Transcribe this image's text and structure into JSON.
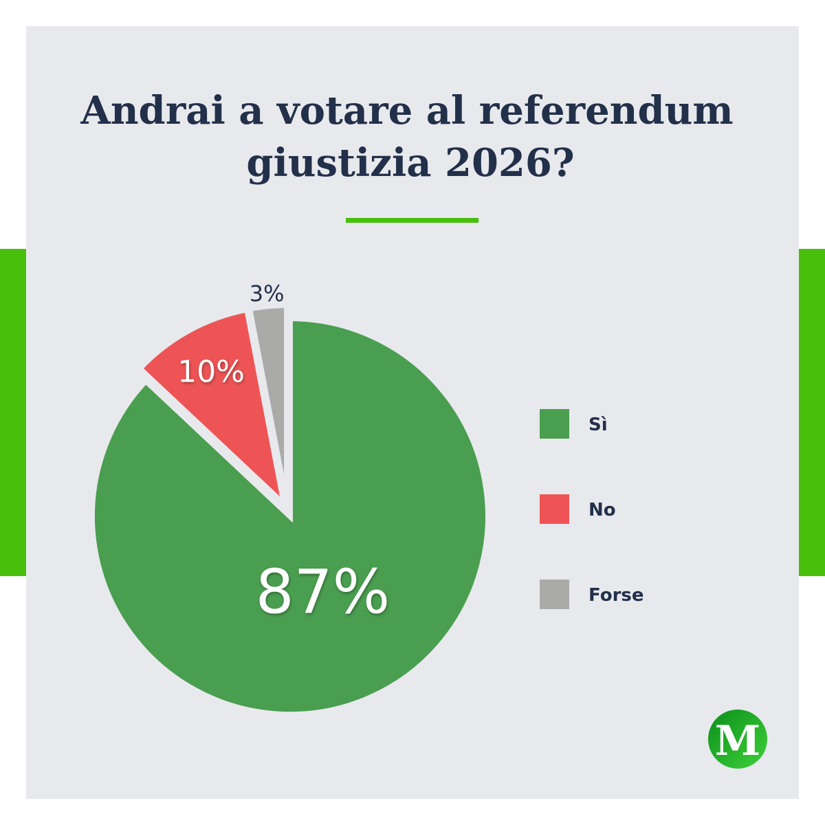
{
  "chart_data": {
    "type": "pie",
    "title": [
      "Andrai a votare al referendum",
      "giustizia 2026?"
    ],
    "categories": [
      "Sì",
      "No",
      "Forse"
    ],
    "values": [
      87,
      10,
      3
    ],
    "value_labels": [
      "87%",
      "10%",
      "3%"
    ],
    "colors": [
      "#4a9e50",
      "#ee5455",
      "#aaaaa9"
    ],
    "legend": "right"
  },
  "logo": "M"
}
